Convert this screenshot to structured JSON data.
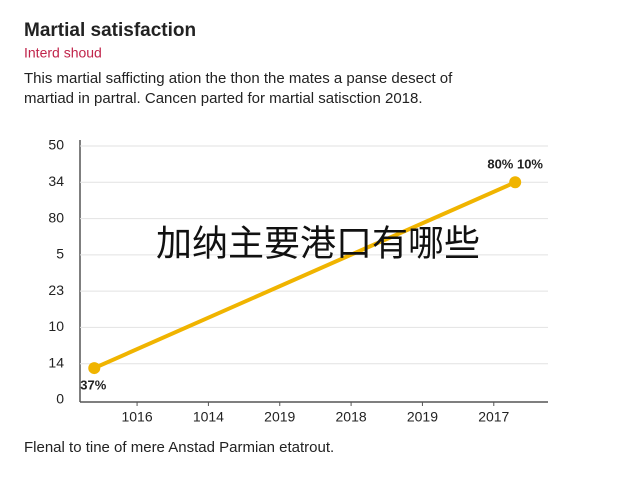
{
  "chart_data": {
    "type": "line",
    "title": "Martial satisfaction",
    "subtitle": "Interd shoud",
    "description": [
      "This martial safficting ation the thon the mates a panse desect of",
      "martiad in partral. Cancen parted for martial satisction 2018."
    ],
    "footer": "Flenal to tine of mere Anstad Parmian etatrout.",
    "overlay_text": "加纳主要港口有哪些",
    "annotations": [
      "37%",
      "80% 10%"
    ],
    "xlim": [
      0.2,
      6.76
    ],
    "xticks": [
      {
        "value": 1,
        "label": "1016"
      },
      {
        "value": 2,
        "label": "1014"
      },
      {
        "value": 3,
        "label": "2019"
      },
      {
        "value": 4,
        "label": "2018"
      },
      {
        "value": 5,
        "label": "2019"
      },
      {
        "value": 6,
        "label": "2017"
      }
    ],
    "ylim": [
      0,
      70
    ],
    "yticks": [
      0,
      {
        "value": 10,
        "label": "14"
      },
      {
        "value": 20,
        "label": "10"
      },
      {
        "value": 30,
        "label": "23"
      },
      {
        "value": 40,
        "label": "5"
      },
      {
        "value": 50,
        "label": "80"
      },
      {
        "value": 60,
        "label": "34"
      },
      {
        "value": 70,
        "label": "50"
      }
    ],
    "grid": true,
    "x": [
      0.4,
      6.3
    ],
    "series": [
      {
        "color": "#f0b400",
        "values": [
          8.8,
          60
        ]
      }
    ]
  }
}
